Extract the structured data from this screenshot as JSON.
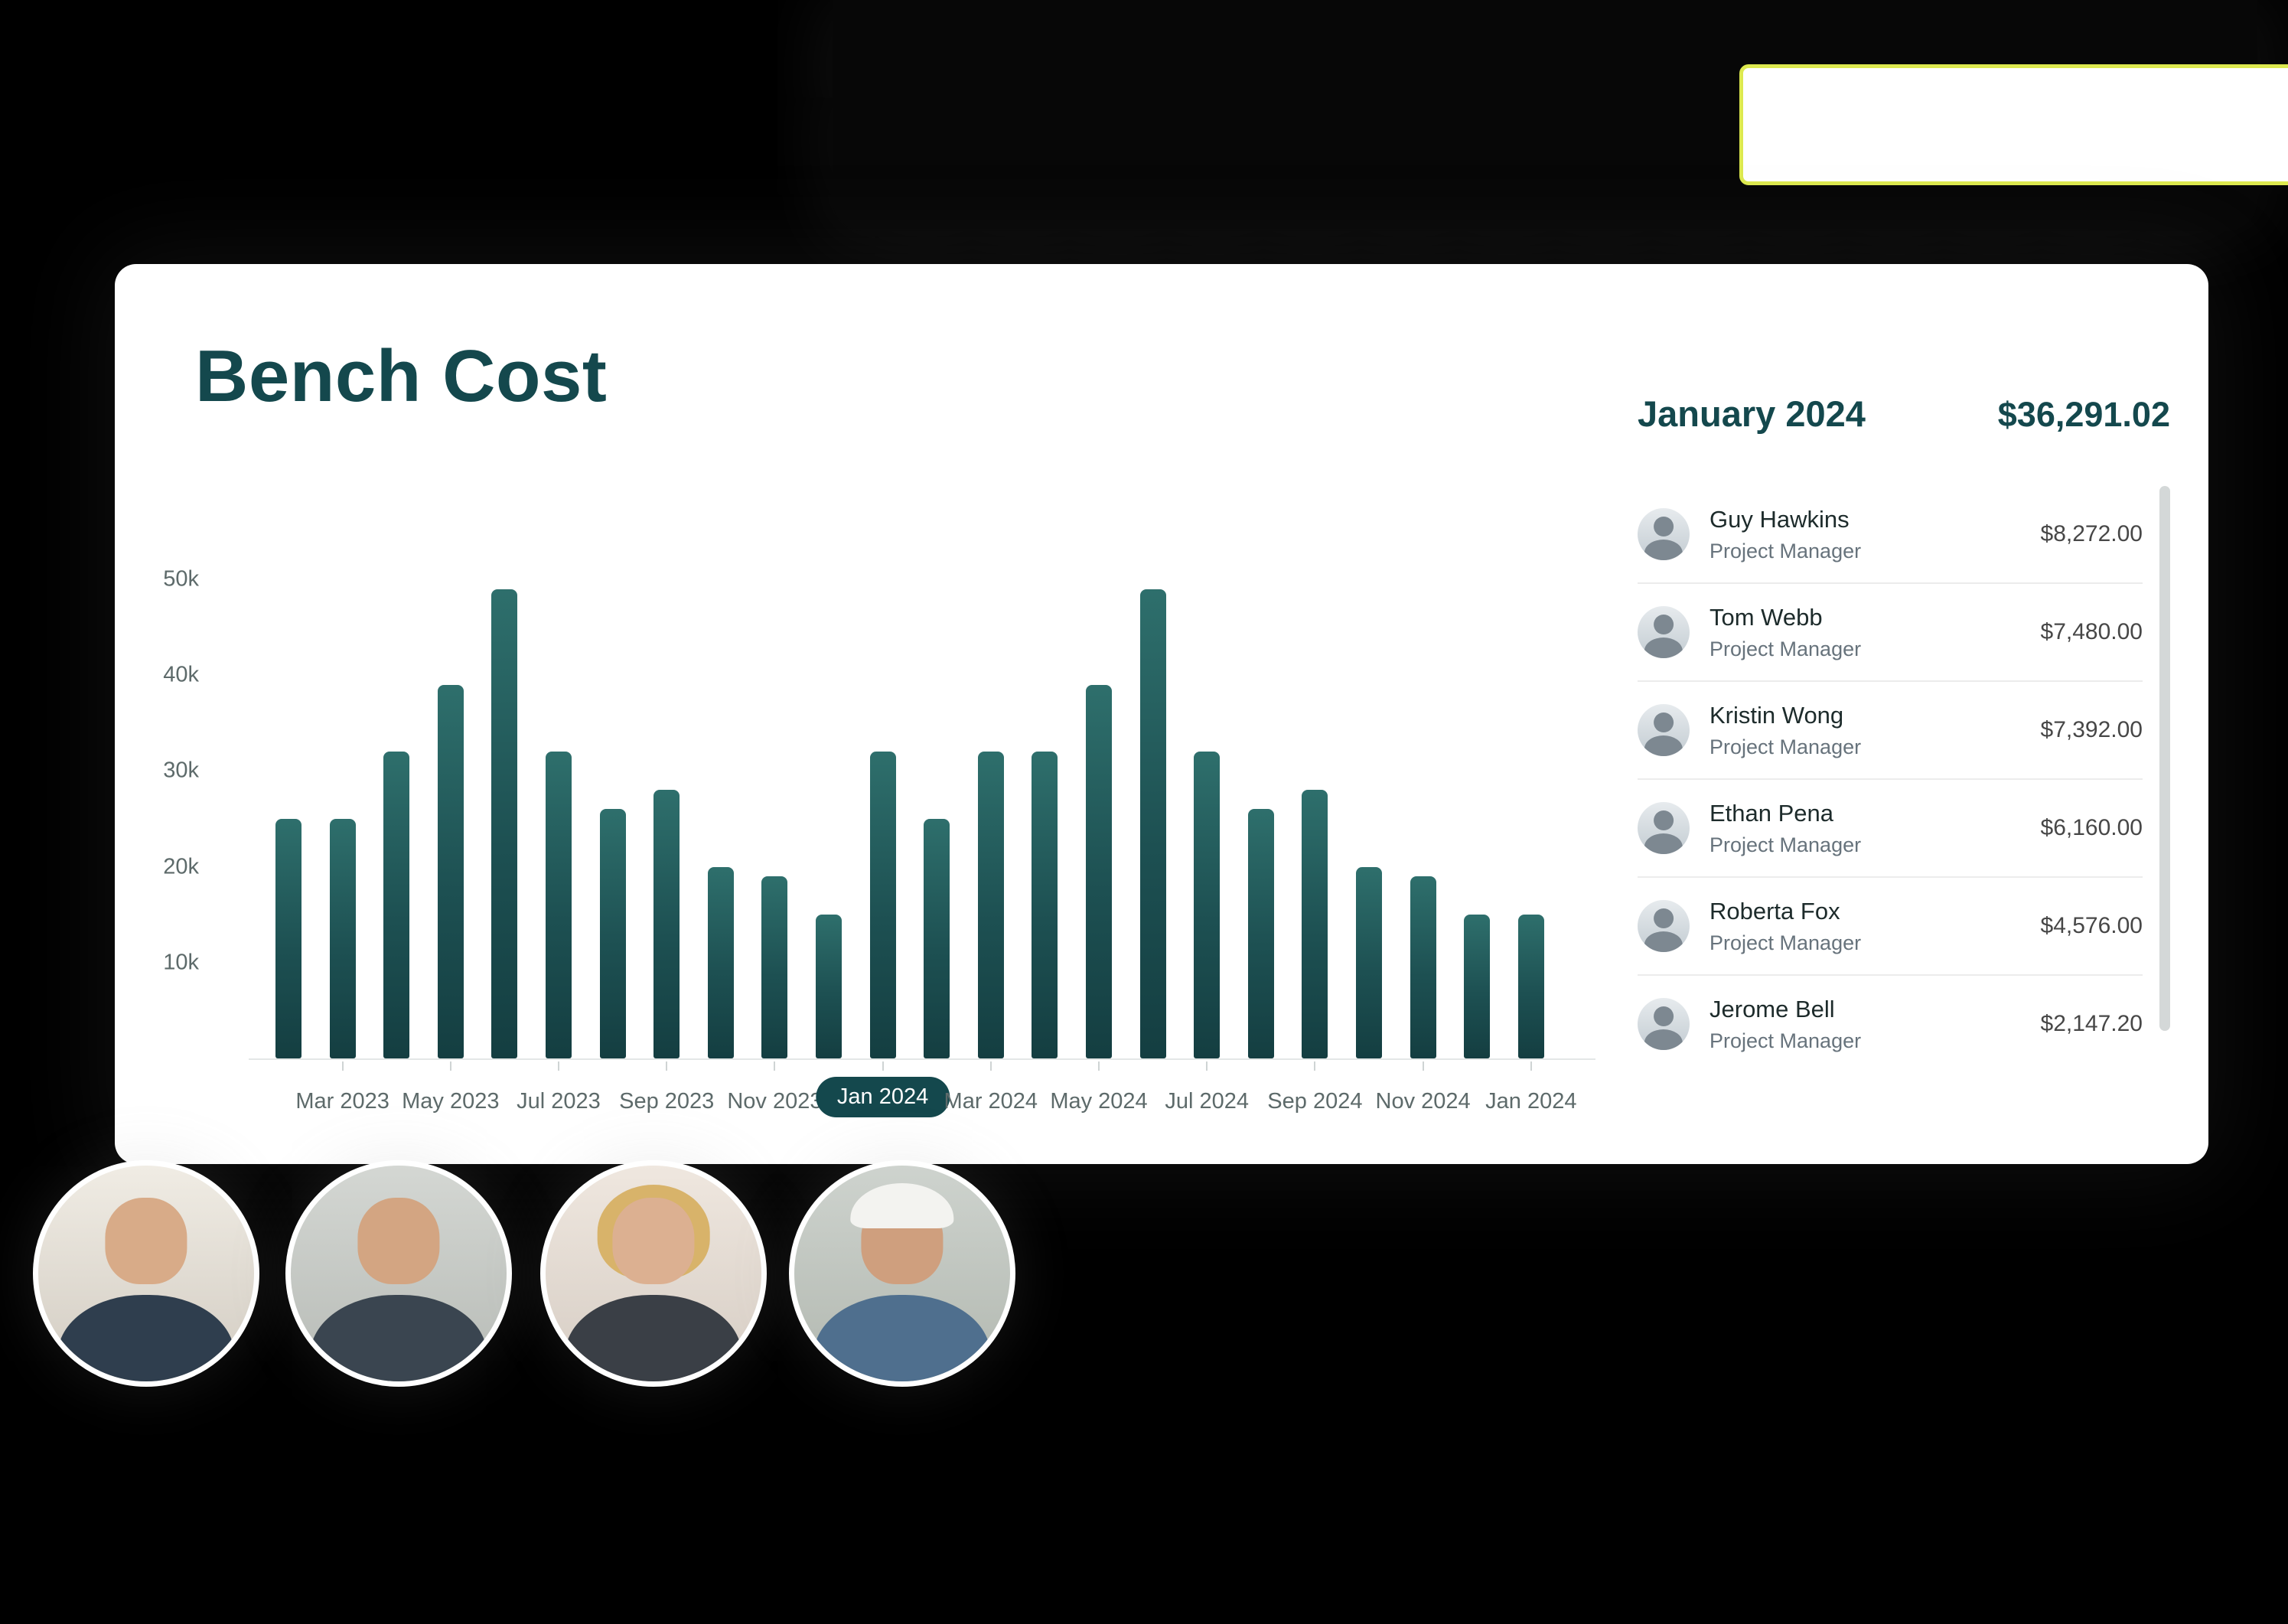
{
  "topbar": {
    "inputs": [
      {
        "value": ""
      },
      {
        "value": ""
      }
    ],
    "dollar_button": "$"
  },
  "card": {
    "title": "Bench Cost"
  },
  "chart_data": {
    "type": "bar",
    "title": "Bench Cost",
    "unit": "thousands",
    "values_k": [
      25,
      25,
      32,
      39,
      49,
      32,
      26,
      28,
      20,
      19,
      15,
      32,
      25,
      32,
      32,
      39,
      49,
      32,
      26,
      28,
      20,
      19,
      15,
      15
    ],
    "yticks": [
      "50k",
      "40k",
      "30k",
      "20k",
      "10k"
    ],
    "xticks": [
      "Mar 2023",
      "May 2023",
      "Jul 2023",
      "Sep 2023",
      "Nov 2023",
      "Jan 2024",
      "Mar 2024",
      "May 2024",
      "Jul 2024",
      "Sep 2024",
      "Nov 2024",
      "Jan 2024"
    ],
    "selected_xtick_index": 5,
    "bars_per_tick": 2,
    "ylim_k": [
      0,
      50
    ],
    "grid": false,
    "legend": false
  },
  "panel": {
    "month": "January 2024",
    "total": "$36,291.02",
    "people": [
      {
        "name": "Guy Hawkins",
        "role": "Project Manager",
        "amount": "$8,272.00"
      },
      {
        "name": "Tom Webb",
        "role": "Project Manager",
        "amount": "$7,480.00"
      },
      {
        "name": "Kristin Wong",
        "role": "Project Manager",
        "amount": "$7,392.00"
      },
      {
        "name": "Ethan Pena",
        "role": "Project Manager",
        "amount": "$6,160.00"
      },
      {
        "name": "Roberta Fox",
        "role": "Project Manager",
        "amount": "$4,576.00"
      },
      {
        "name": "Jerome Bell",
        "role": "Project Manager",
        "amount": "$2,147.20"
      }
    ]
  },
  "colors": {
    "accent_yellow": "#dde94f",
    "teal_dark": "#14484d",
    "bar_top": "#2e6f6c",
    "bar_bottom": "#143e41",
    "background": "#000000"
  }
}
